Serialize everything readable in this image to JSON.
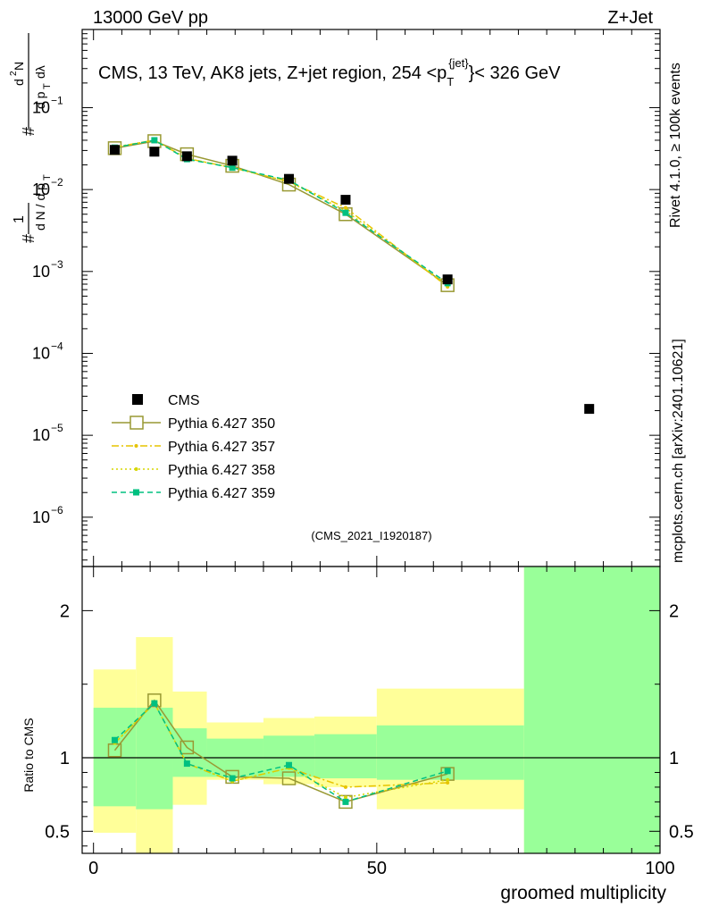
{
  "header": {
    "left": "13000 GeV pp",
    "right": "Z+Jet"
  },
  "side": {
    "rivet": "Rivet 4.1.0, ≥ 100k events",
    "mcplots": "mcplots.cern.ch [arXiv:2401.10621]"
  },
  "plot_title": "CMS, 13 TeV, AK8 jets, Z+jet region, 254 <p_T^{jet}< 326 GeV",
  "analysis_id": "(CMS_2021_I1920187)",
  "main_ylabel": "1/(dN/dp_T) · d²N/(dp_T dλ)",
  "ratio_ylabel": "Ratio to CMS",
  "xlabel": "groomed multiplicity",
  "legend": [
    {
      "label": "CMS",
      "color": "#000000",
      "style": "square-filled"
    },
    {
      "label": "Pythia 6.427 350",
      "color": "#999933",
      "style": "square-open-solid"
    },
    {
      "label": "Pythia 6.427 357",
      "color": "#e6c300",
      "style": "dashdot"
    },
    {
      "label": "Pythia 6.427 358",
      "color": "#d6d600",
      "style": "dotted"
    },
    {
      "label": "Pythia 6.427 359",
      "color": "#00c080",
      "style": "dashed"
    }
  ],
  "chart_data": {
    "type": "scatter",
    "x_range": [
      -2,
      100
    ],
    "x_ticks": [
      0,
      50,
      100
    ],
    "main": {
      "yscale": "log",
      "ylim": [
        2.5e-07,
        0.9
      ],
      "y_ticks": [
        "10^{-6}",
        "10^{-5}",
        "10^{-4}",
        "10^{-3}",
        "10^{-2}",
        "10^{-1}"
      ],
      "data": {
        "name": "CMS",
        "x": [
          3.75,
          10.75,
          16.5,
          24.5,
          34.5,
          44.5,
          62.5,
          87.5
        ],
        "y": [
          0.0305,
          0.029,
          0.0255,
          0.0225,
          0.0135,
          0.0075,
          0.0008,
          2.1e-05
        ]
      },
      "series": [
        {
          "name": "Pythia 6.427 350",
          "x": [
            3.75,
            10.75,
            16.5,
            24.5,
            34.5,
            44.5,
            62.5
          ],
          "y": [
            0.032,
            0.039,
            0.027,
            0.0195,
            0.0115,
            0.005,
            0.00068
          ]
        },
        {
          "name": "Pythia 6.427 357",
          "x": [
            3.75,
            10.75,
            16.5,
            24.5,
            34.5,
            44.5,
            62.5
          ],
          "y": [
            0.033,
            0.04,
            0.024,
            0.0185,
            0.0125,
            0.006,
            0.00065
          ]
        },
        {
          "name": "Pythia 6.427 358",
          "x": [
            3.75,
            10.75,
            16.5,
            24.5,
            34.5,
            44.5,
            62.5
          ],
          "y": [
            0.033,
            0.04,
            0.024,
            0.0185,
            0.0125,
            0.0055,
            0.00068
          ]
        },
        {
          "name": "Pythia 6.427 359",
          "x": [
            3.75,
            10.75,
            16.5,
            24.5,
            34.5,
            44.5,
            62.5
          ],
          "y": [
            0.0325,
            0.04,
            0.0235,
            0.0185,
            0.013,
            0.0052,
            0.00072
          ]
        }
      ]
    },
    "ratio": {
      "ylim": [
        0.35,
        2.3
      ],
      "y_ticks": [
        0.5,
        1,
        2
      ],
      "reference": 1,
      "bins": [
        [
          0,
          7.5
        ],
        [
          7.5,
          14
        ],
        [
          14,
          20
        ],
        [
          20,
          30
        ],
        [
          30,
          39
        ],
        [
          39,
          50
        ],
        [
          50,
          76
        ],
        [
          76,
          100
        ]
      ],
      "band_inner": [
        [
          0.67,
          1.34
        ],
        [
          0.65,
          1.34
        ],
        [
          0.87,
          1.2
        ],
        [
          0.87,
          1.13
        ],
        [
          0.87,
          1.15
        ],
        [
          0.86,
          1.16
        ],
        [
          0.85,
          1.22
        ],
        [
          0.35,
          2.3
        ]
      ],
      "band_outer": [
        [
          0.49,
          1.6
        ],
        [
          0.35,
          1.82
        ],
        [
          0.68,
          1.45
        ],
        [
          0.85,
          1.24
        ],
        [
          0.82,
          1.27
        ],
        [
          0.8,
          1.28
        ],
        [
          0.65,
          1.47
        ],
        [
          0.35,
          2.3
        ]
      ],
      "series": [
        {
          "name": "Pythia 6.427 350",
          "x": [
            3.75,
            10.75,
            16.5,
            24.5,
            34.5,
            44.5,
            62.5
          ],
          "y": [
            1.05,
            1.39,
            1.07,
            0.87,
            0.86,
            0.7,
            0.89
          ]
        },
        {
          "name": "Pythia 6.427 357",
          "x": [
            3.75,
            10.75,
            16.5,
            24.5,
            34.5,
            44.5,
            62.5
          ],
          "y": [
            1.1,
            1.37,
            0.96,
            0.84,
            0.93,
            0.8,
            0.83
          ]
        },
        {
          "name": "Pythia 6.427 358",
          "x": [
            3.75,
            10.75,
            16.5,
            24.5,
            34.5,
            44.5,
            62.5
          ],
          "y": [
            1.1,
            1.37,
            0.96,
            0.84,
            0.93,
            0.73,
            0.85
          ]
        },
        {
          "name": "Pythia 6.427 359",
          "x": [
            3.75,
            10.75,
            16.5,
            24.5,
            34.5,
            44.5,
            62.5
          ],
          "y": [
            1.12,
            1.37,
            0.96,
            0.86,
            0.95,
            0.7,
            0.91
          ]
        }
      ]
    }
  }
}
